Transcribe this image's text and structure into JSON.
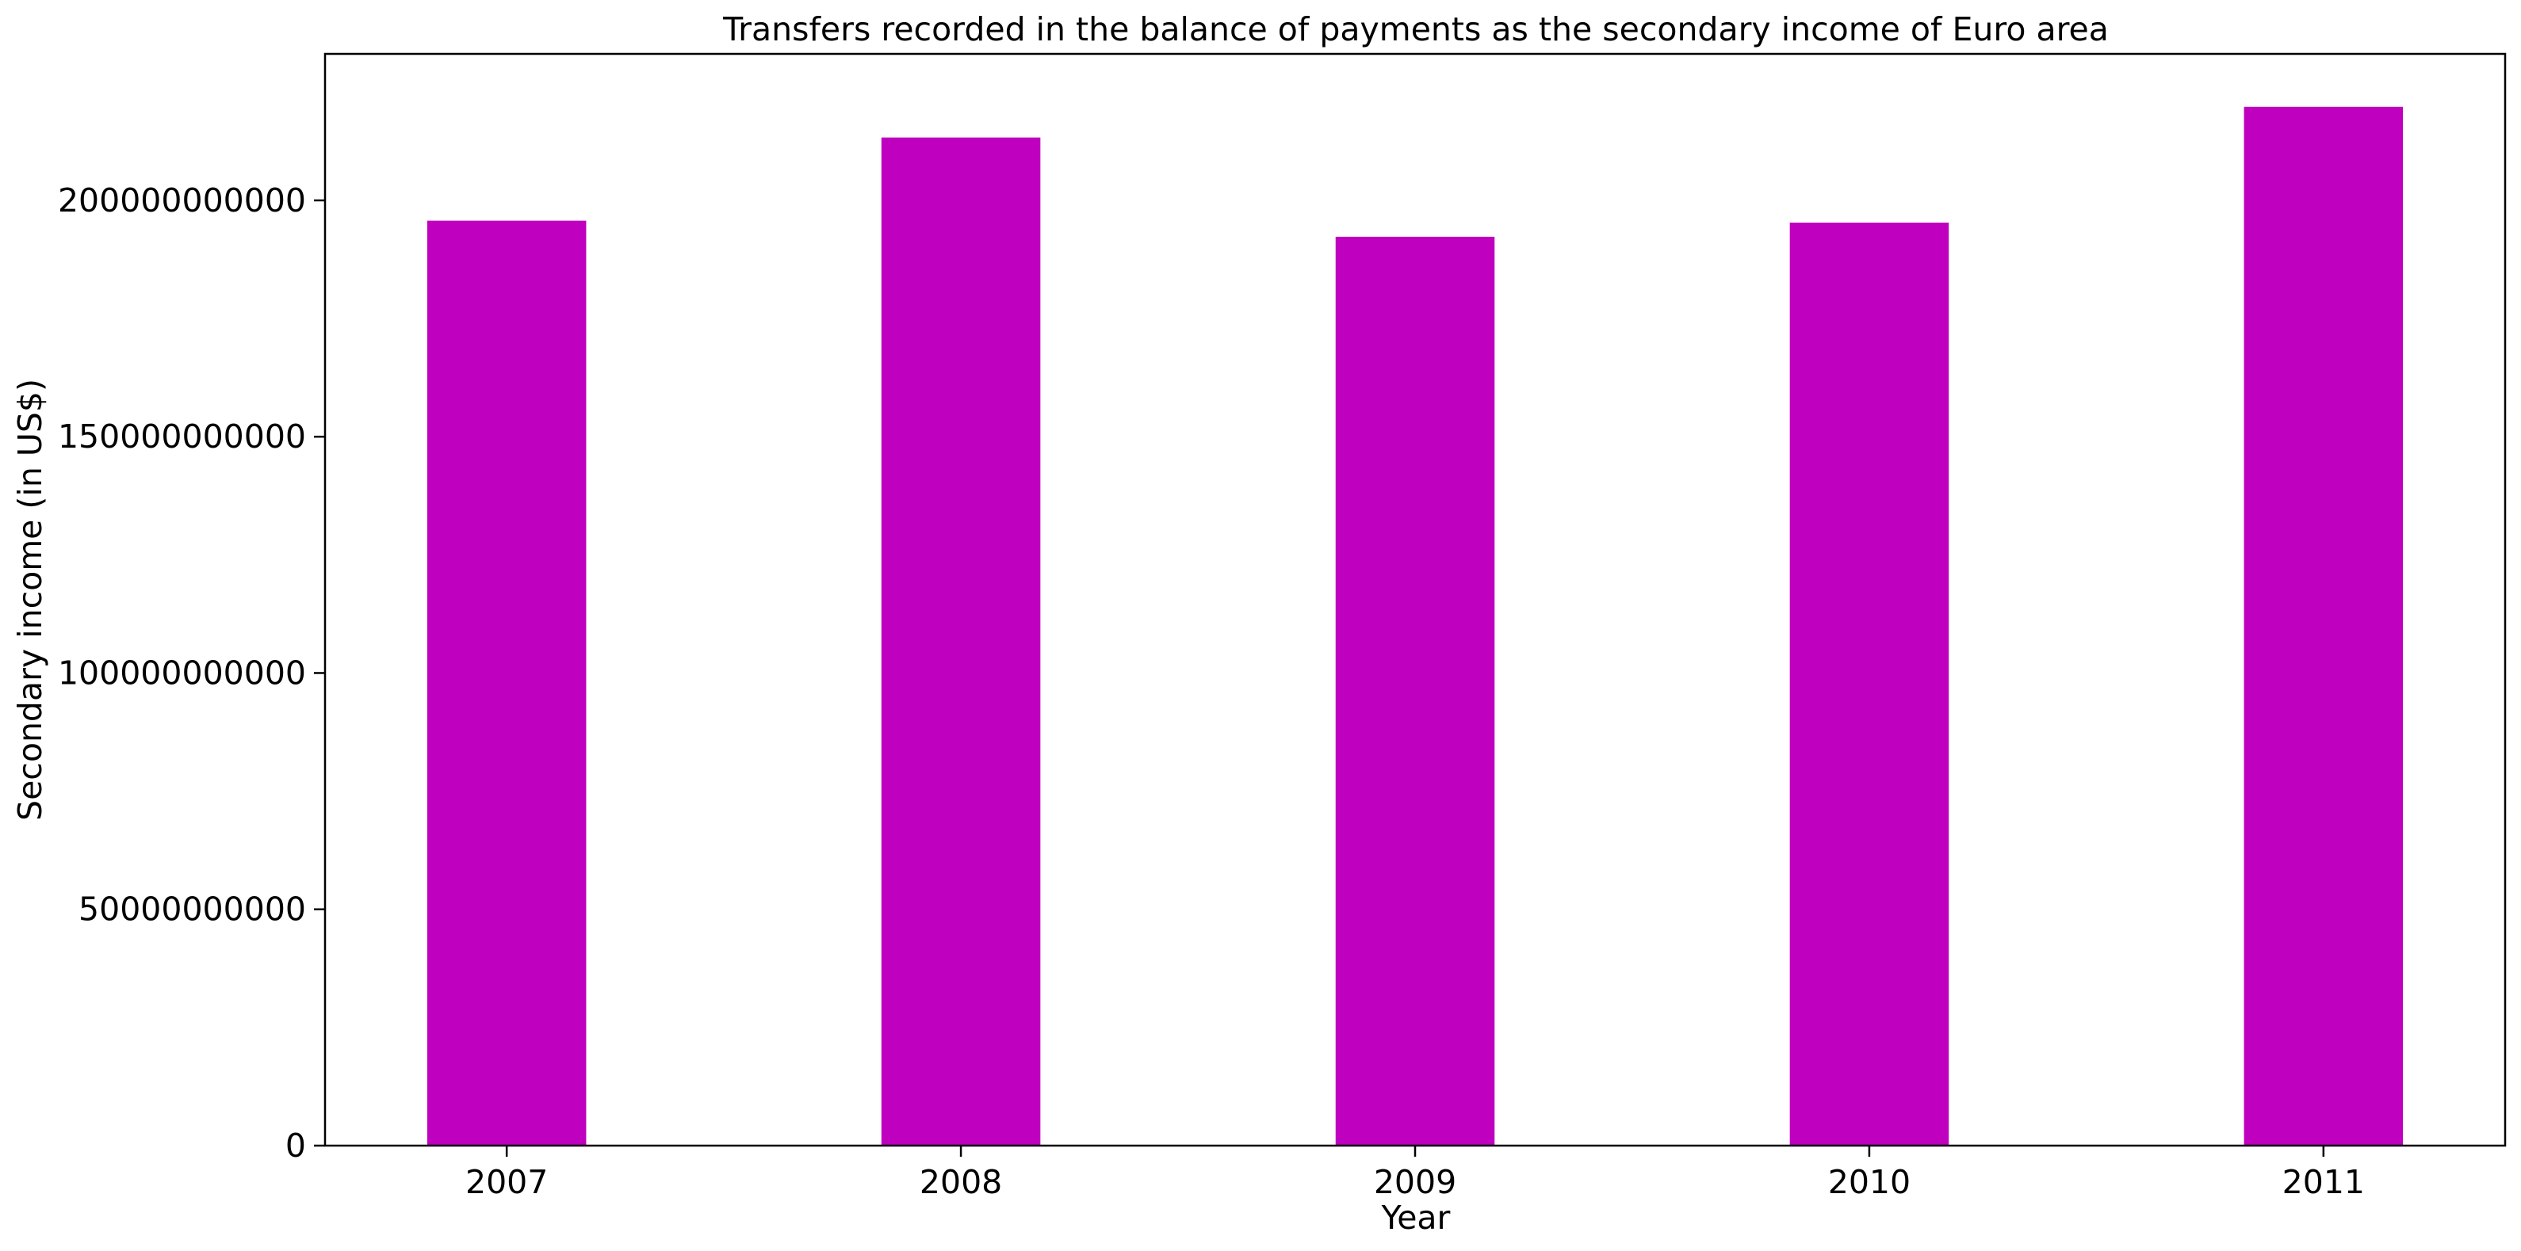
{
  "chart_data": {
    "type": "bar",
    "title": "Transfers recorded in the balance of payments as the secondary income of Euro area",
    "xlabel": "Year",
    "ylabel": "Secondary income (in US$)",
    "categories": [
      "2007",
      "2008",
      "2009",
      "2010",
      "2011"
    ],
    "values": [
      195700000000,
      213300000000,
      192300000000,
      195300000000,
      219800000000
    ],
    "ylim": [
      0,
      231000000000
    ],
    "yticks": [
      0,
      50000000000,
      100000000000,
      150000000000,
      200000000000
    ],
    "ytick_labels": [
      "0",
      "50000000000",
      "100000000000",
      "150000000000",
      "200000000000"
    ],
    "bar_color": "#bf00bf",
    "grid": false,
    "legend": "none"
  }
}
